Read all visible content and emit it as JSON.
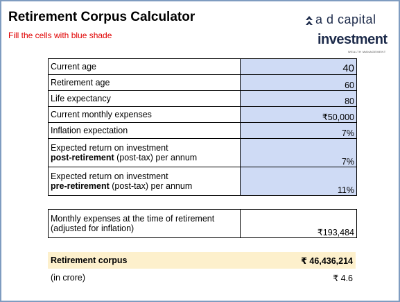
{
  "header": {
    "title": "Retirement Corpus Calculator",
    "subtitle": "Fill the cells with blue shade"
  },
  "logo": {
    "line1": "a d capital",
    "line2": "investment",
    "tagline": "WEALTH MANAGEMENT"
  },
  "inputs": [
    {
      "label": "Current age",
      "value": "40"
    },
    {
      "label": "Retirement age",
      "value": "60"
    },
    {
      "label": "Life expectancy",
      "value": "80"
    },
    {
      "label": "Current monthly expenses",
      "value": "₹50,000"
    },
    {
      "label": "Inflation expectation",
      "value": "7%"
    },
    {
      "label": "Expected return on investment",
      "label_bold": "post-retirement",
      "label_rest": " (post-tax) per annum",
      "value": "7%"
    },
    {
      "label": "Expected return on investment",
      "label_bold": "pre-retirement",
      "label_rest": " (post-tax) per annum",
      "value": "11%"
    }
  ],
  "monthly": {
    "label": "Monthly expenses at the time of retirement",
    "label_line2": "(adjusted for inflation)",
    "value": "₹193,484"
  },
  "corpus": {
    "label": "Retirement corpus",
    "value": "₹ 46,436,214"
  },
  "crore": {
    "label": "(in crore)",
    "value": "₹ 4.6"
  }
}
